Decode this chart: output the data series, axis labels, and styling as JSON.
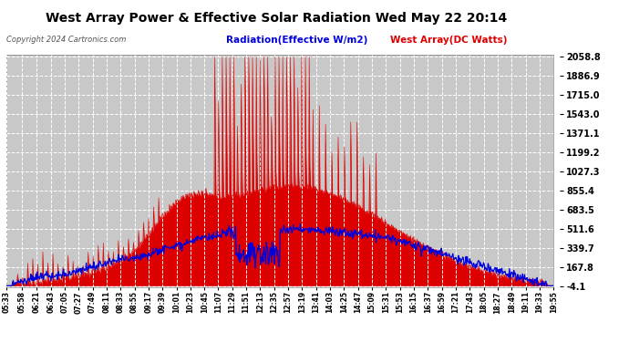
{
  "title": "West Array Power & Effective Solar Radiation Wed May 22 20:14",
  "copyright": "Copyright 2024 Cartronics.com",
  "legend_blue": "Radiation(Effective W/m2)",
  "legend_red": "West Array(DC Watts)",
  "ymin": -4.1,
  "ymax": 2058.8,
  "yticks": [
    2058.8,
    1886.9,
    1715.0,
    1543.0,
    1371.1,
    1199.2,
    1027.3,
    855.4,
    683.5,
    511.6,
    339.7,
    167.8,
    -4.1
  ],
  "bg_color": "#ffffff",
  "plot_bg_color": "#c8c8c8",
  "red_color": "#dd0000",
  "blue_color": "#0000dd",
  "grid_color": "#ffffff",
  "title_color": "#000000",
  "time_labels": [
    "05:33",
    "05:58",
    "06:21",
    "06:43",
    "07:05",
    "07:27",
    "07:49",
    "08:11",
    "08:33",
    "08:55",
    "09:17",
    "09:39",
    "10:01",
    "10:23",
    "10:45",
    "11:07",
    "11:29",
    "11:51",
    "12:13",
    "12:35",
    "12:57",
    "13:19",
    "13:41",
    "14:03",
    "14:25",
    "14:47",
    "15:09",
    "15:31",
    "15:53",
    "16:15",
    "16:37",
    "16:59",
    "17:21",
    "17:43",
    "18:05",
    "18:27",
    "18:49",
    "19:11",
    "19:33",
    "19:55"
  ]
}
